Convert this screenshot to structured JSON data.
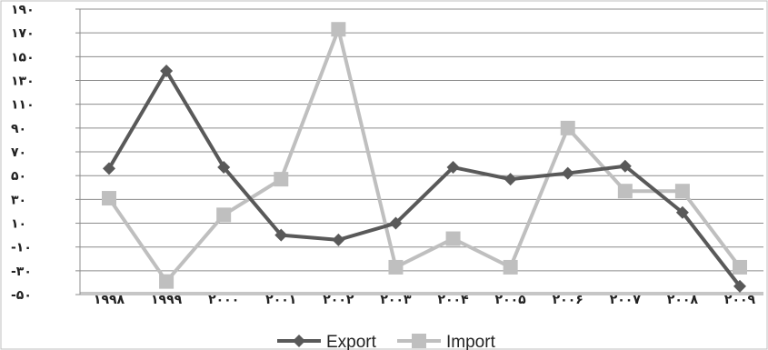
{
  "chart_data": {
    "type": "line",
    "title": "",
    "xlabel": "",
    "ylabel": "",
    "categories": [
      "۱۹۹۸",
      "۱۹۹۹",
      "۲۰۰۰",
      "۲۰۰۱",
      "۲۰۰۲",
      "۲۰۰۳",
      "۲۰۰۴",
      "۲۰۰۵",
      "۲۰۰۶",
      "۲۰۰۷",
      "۲۰۰۸",
      "۲۰۰۹"
    ],
    "ylim": [
      -50,
      190
    ],
    "y_ticks": [
      190,
      170,
      150,
      130,
      110,
      90,
      70,
      50,
      30,
      10,
      -10,
      -30,
      -50
    ],
    "y_tick_labels": [
      "۱۹۰",
      "۱۷۰",
      "۱۵۰",
      "۱۳۰",
      "۱۱۰",
      "۹۰",
      "۷۰",
      "۵۰",
      "۳۰",
      "۱۰",
      "-۱۰",
      "-۳۰",
      "-۵۰"
    ],
    "grid": true,
    "legend_position": "bottom",
    "series": [
      {
        "name": "Export",
        "color": "#595959",
        "marker": "diamond",
        "values": [
          56,
          138,
          57,
          0,
          -4,
          10,
          57,
          47,
          52,
          58,
          19,
          -43
        ]
      },
      {
        "name": "Import",
        "color": "#bfbfbf",
        "marker": "square",
        "values": [
          31,
          -39,
          17,
          47,
          173,
          -27,
          -3,
          -27,
          90,
          37,
          37,
          -27
        ]
      }
    ]
  }
}
